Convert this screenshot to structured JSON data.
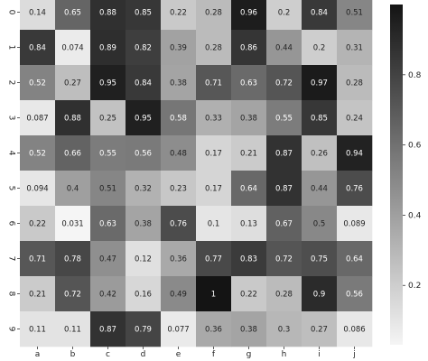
{
  "chart_data": {
    "type": "heatmap",
    "title": "",
    "xlabel": "",
    "ylabel": "",
    "x_categories": [
      "a",
      "b",
      "c",
      "d",
      "e",
      "f",
      "g",
      "h",
      "i",
      "j"
    ],
    "y_categories": [
      "0",
      "1",
      "2",
      "3",
      "4",
      "5",
      "6",
      "7",
      "8",
      "9"
    ],
    "values": [
      [
        0.14,
        0.65,
        0.88,
        0.85,
        0.22,
        0.28,
        0.96,
        0.2,
        0.84,
        0.51
      ],
      [
        0.84,
        0.074,
        0.89,
        0.82,
        0.39,
        0.28,
        0.86,
        0.44,
        0.2,
        0.31
      ],
      [
        0.52,
        0.27,
        0.95,
        0.84,
        0.38,
        0.71,
        0.63,
        0.72,
        0.97,
        0.28
      ],
      [
        0.087,
        0.88,
        0.25,
        0.95,
        0.58,
        0.33,
        0.38,
        0.55,
        0.85,
        0.24
      ],
      [
        0.52,
        0.66,
        0.55,
        0.56,
        0.48,
        0.17,
        0.21,
        0.87,
        0.26,
        0.94
      ],
      [
        0.094,
        0.4,
        0.51,
        0.32,
        0.23,
        0.17,
        0.64,
        0.87,
        0.44,
        0.76
      ],
      [
        0.22,
        0.031,
        0.63,
        0.38,
        0.76,
        0.1,
        0.13,
        0.67,
        0.5,
        0.089
      ],
      [
        0.71,
        0.78,
        0.47,
        0.12,
        0.36,
        0.77,
        0.83,
        0.72,
        0.75,
        0.64
      ],
      [
        0.21,
        0.72,
        0.42,
        0.16,
        0.49,
        1,
        0.22,
        0.28,
        0.9,
        0.56
      ],
      [
        0.11,
        0.11,
        0.87,
        0.79,
        0.077,
        0.36,
        0.38,
        0.3,
        0.27,
        0.086
      ]
    ],
    "colormap": "greys",
    "vmin": 0.031,
    "vmax": 1,
    "colorbar_ticks": [
      "0.2",
      "0.4",
      "0.6",
      "0.8"
    ],
    "annotations": true,
    "colorbar": true
  }
}
